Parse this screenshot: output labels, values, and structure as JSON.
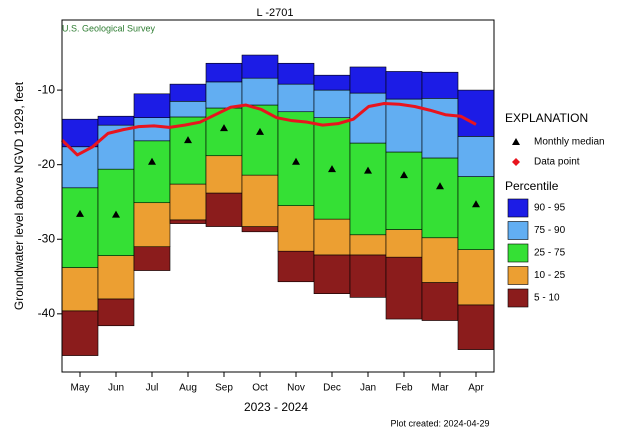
{
  "chart_data": {
    "type": "percentile",
    "title": "L -2701",
    "source": "U.S. Geological Survey",
    "y_label": "Groundwater level above NGVD 1929, feet",
    "x_label": "2023 - 2024",
    "footnote": "Plot created: 2024-04-29",
    "legend_title": "EXPLANATION",
    "percentile_title": "Percentile",
    "categories": [
      "May",
      "Jun",
      "Jul",
      "Aug",
      "Sep",
      "Oct",
      "Nov",
      "Dec",
      "Jan",
      "Feb",
      "Mar",
      "Apr"
    ],
    "base": [
      -45.6,
      -41.6,
      -34.2,
      -27.9,
      -28.3,
      -29.0,
      -35.7,
      -37.3,
      -37.8,
      -40.7,
      -40.9,
      -44.8
    ],
    "series": [
      {
        "name": "5 - 10",
        "color": "#8b1c1c",
        "values": [
          -39.6,
          -38.0,
          -31.0,
          -27.4,
          -23.8,
          -28.3,
          -31.6,
          -32.1,
          -32.1,
          -32.4,
          -35.8,
          -38.8
        ]
      },
      {
        "name": "10 - 25",
        "color": "#ec9f32",
        "values": [
          -33.8,
          -32.2,
          -25.1,
          -22.6,
          -18.8,
          -21.4,
          -25.5,
          -27.3,
          -29.4,
          -28.7,
          -29.8,
          -31.4
        ]
      },
      {
        "name": "25 - 75",
        "color": "#35e035",
        "values": [
          -23.1,
          -20.6,
          -16.8,
          -13.6,
          -12.4,
          -12.0,
          -12.9,
          -13.7,
          -17.1,
          -18.3,
          -19.1,
          -21.6
        ]
      },
      {
        "name": "75 - 90",
        "color": "#62aef2",
        "values": [
          -17.6,
          -14.7,
          -13.7,
          -11.5,
          -8.9,
          -8.4,
          -9.2,
          -10.0,
          -10.4,
          -11.2,
          -11.1,
          -16.2
        ]
      },
      {
        "name": "90 - 95",
        "color": "#1c1ce6",
        "values": [
          -13.9,
          -13.5,
          -10.5,
          -9.2,
          -6.4,
          -5.3,
          -6.4,
          -8.0,
          -6.9,
          -7.5,
          -7.6,
          -10.0
        ]
      }
    ],
    "median": {
      "name": "Monthly median",
      "color": "#000000",
      "values": [
        -26.6,
        -26.7,
        -19.6,
        -16.7,
        -15.1,
        -15.6,
        -19.6,
        -20.6,
        -20.8,
        -21.4,
        -22.9,
        -25.3
      ]
    },
    "points": {
      "name": "Data point",
      "color": "#e8141e",
      "values": [
        -16.7,
        -18.7,
        -17.6,
        -15.8,
        -15.3,
        -14.9,
        -14.8,
        -15.0,
        -14.7,
        -14.3,
        -13.3,
        -12.3,
        -12.0,
        -12.6,
        -13.7,
        -14.1,
        -14.3,
        -14.7,
        -14.5,
        -13.9,
        -12.2,
        -11.8,
        -11.9,
        -12.2,
        -12.7,
        -13.3,
        -13.5,
        -14.6
      ]
    },
    "ylim": [
      -47.8,
      -0.6
    ],
    "yticks": [
      -10,
      -20,
      -30,
      -40
    ],
    "grid": false
  }
}
